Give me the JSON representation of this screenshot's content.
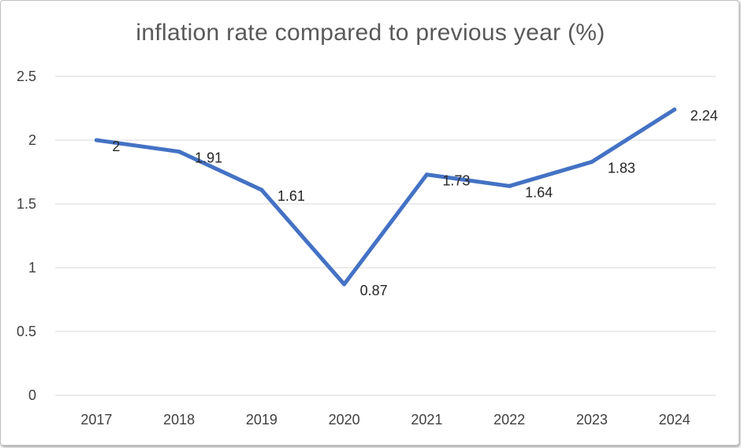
{
  "chart_data": {
    "type": "line",
    "title": "inflation rate compared to previous year (%)",
    "categories": [
      "2017",
      "2018",
      "2019",
      "2020",
      "2021",
      "2022",
      "2023",
      "2024"
    ],
    "series": [
      {
        "values": [
          2,
          1.91,
          1.61,
          0.87,
          1.73,
          1.64,
          1.83,
          2.24
        ],
        "data_labels": [
          "2",
          "1.91",
          "1.61",
          "0.87",
          "1.73",
          "1.64",
          "1.83",
          "2.24"
        ],
        "color": "#4472c4"
      }
    ],
    "y_ticks": [
      "0",
      "0.5",
      "1",
      "1.5",
      "2",
      "2.5"
    ],
    "ylim": [
      0,
      2.5
    ],
    "grid": "horizontal",
    "legend": "none",
    "xlabel": "",
    "ylabel": ""
  },
  "colors": {
    "line": "#4472c4",
    "grid": "#d9d9d9",
    "text": "#404040",
    "title": "#595959"
  }
}
